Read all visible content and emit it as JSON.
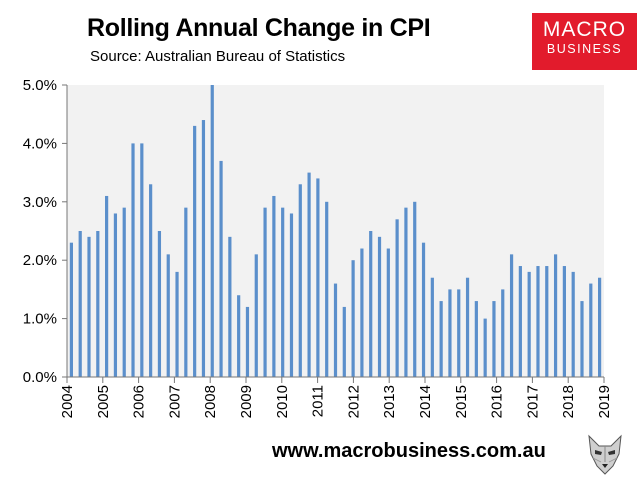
{
  "header": {
    "title": "Rolling Annual Change in CPI",
    "subtitle": "Source: Australian Bureau of Statistics"
  },
  "logo": {
    "line1": "MACRO",
    "line2": "BUSINESS"
  },
  "footer": {
    "url": "www.macrobusiness.com.au"
  },
  "colors": {
    "bar": "#5b8fcb",
    "plot_bg": "#f2f2f2",
    "brand": "#e21b2c"
  },
  "chart_data": {
    "type": "bar",
    "title": "Rolling Annual Change in CPI",
    "xlabel": "",
    "ylabel": "",
    "ylim": [
      0,
      5
    ],
    "yticks": [
      "0.0%",
      "1.0%",
      "2.0%",
      "3.0%",
      "4.0%",
      "5.0%"
    ],
    "year_labels": [
      "2004",
      "2005",
      "2006",
      "2007",
      "2008",
      "2009",
      "2010",
      "2011",
      "2012",
      "2013",
      "2014",
      "2015",
      "2016",
      "2017",
      "2018",
      "2019"
    ],
    "values": [
      2.3,
      2.5,
      2.4,
      2.5,
      3.1,
      2.8,
      2.9,
      4.0,
      4.0,
      3.3,
      2.5,
      2.1,
      1.8,
      2.9,
      4.3,
      4.4,
      5.0,
      3.7,
      2.4,
      1.4,
      1.2,
      2.1,
      2.9,
      3.1,
      2.9,
      2.8,
      3.3,
      3.5,
      3.4,
      3.0,
      1.6,
      1.2,
      2.0,
      2.2,
      2.5,
      2.4,
      2.2,
      2.7,
      2.9,
      3.0,
      2.3,
      1.7,
      1.3,
      1.5,
      1.5,
      1.7,
      1.3,
      1.0,
      1.3,
      1.5,
      2.1,
      1.9,
      1.8,
      1.9,
      1.9,
      2.1,
      1.9,
      1.8,
      1.3,
      1.6,
      1.7
    ]
  }
}
